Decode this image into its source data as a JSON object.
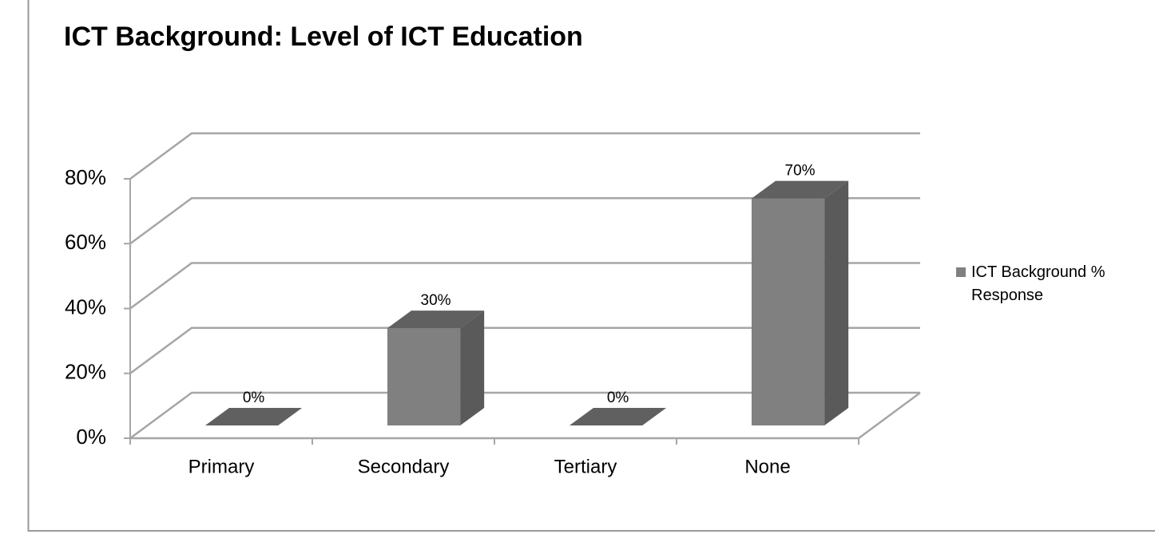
{
  "chart_data": {
    "type": "bar3d",
    "title": "ICT Background: Level of ICT Education",
    "categories": [
      "Primary",
      "Secondary",
      "Tertiary",
      "None"
    ],
    "series": [
      {
        "name": "ICT Background % Response",
        "color": "#808080",
        "values": [
          0,
          30,
          0,
          70
        ],
        "value_labels": [
          "0%",
          "30%",
          "0%",
          "70%"
        ]
      }
    ],
    "ylim": [
      0,
      80
    ],
    "yticks": [
      {
        "value": 0,
        "label": "0%"
      },
      {
        "value": 20,
        "label": "20%"
      },
      {
        "value": 40,
        "label": "40%"
      },
      {
        "value": 60,
        "label": "60%"
      },
      {
        "value": 80,
        "label": "80%"
      }
    ],
    "grid": true,
    "legend": "right"
  }
}
